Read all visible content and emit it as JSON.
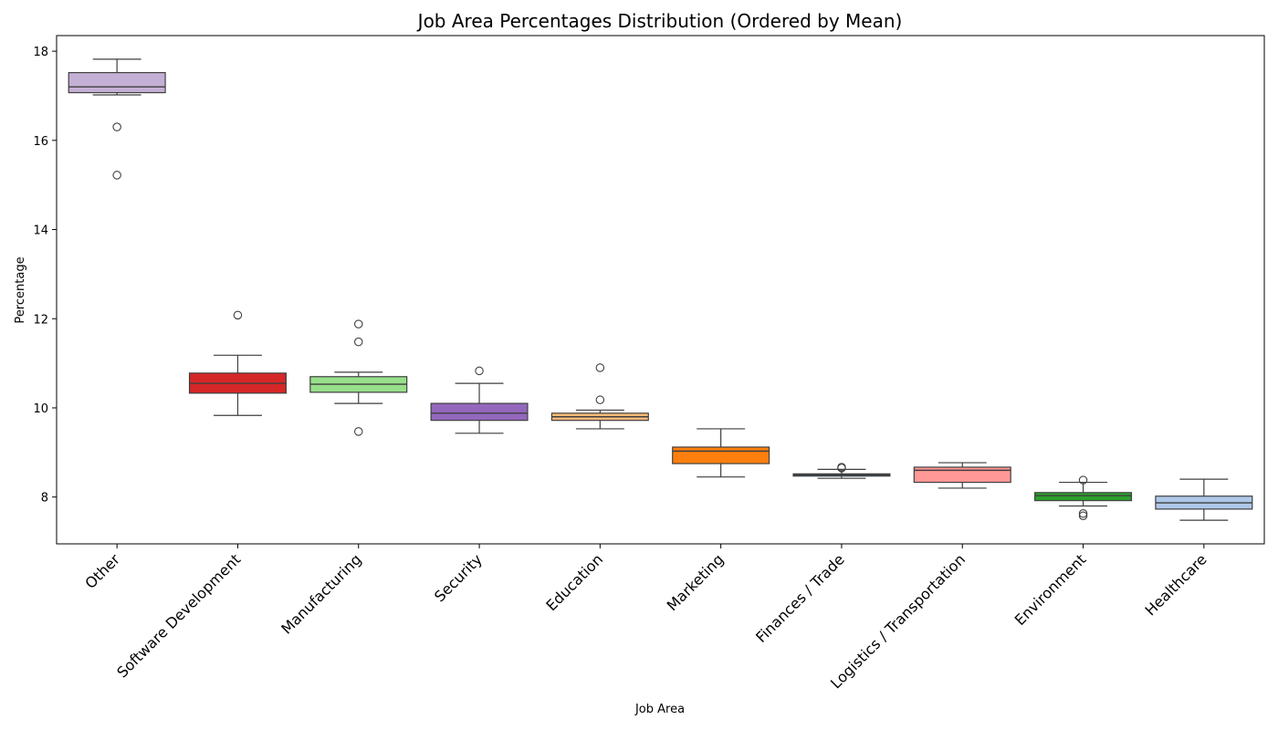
{
  "chart_data": {
    "type": "boxplot",
    "title": "Job Area Percentages Distribution (Ordered by Mean)",
    "xlabel": "Job Area",
    "ylabel": "Percentage",
    "ylim": [
      6.95,
      18.35
    ],
    "yticks": [
      8,
      10,
      12,
      14,
      16,
      18
    ],
    "grid": false,
    "legend": "none",
    "categories": [
      "Other",
      "Software Development",
      "Manufacturing",
      "Security",
      "Education",
      "Marketing",
      "Finances / Trade",
      "Logistics / Transportation",
      "Environment",
      "Healthcare"
    ],
    "boxes": [
      {
        "category": "Other",
        "color": "#c5b0d5",
        "whisker_low": 17.02,
        "q1": 17.07,
        "median": 17.2,
        "q3": 17.52,
        "whisker_high": 17.82,
        "outliers": [
          16.3,
          15.22
        ]
      },
      {
        "category": "Software Development",
        "color": "#d62728",
        "whisker_low": 9.83,
        "q1": 10.33,
        "median": 10.55,
        "q3": 10.78,
        "whisker_high": 11.18,
        "outliers": [
          12.08
        ]
      },
      {
        "category": "Manufacturing",
        "color": "#98df8a",
        "whisker_low": 10.1,
        "q1": 10.35,
        "median": 10.53,
        "q3": 10.7,
        "whisker_high": 10.8,
        "outliers": [
          11.88,
          11.48,
          9.47
        ]
      },
      {
        "category": "Security",
        "color": "#9467bd",
        "whisker_low": 9.43,
        "q1": 9.72,
        "median": 9.88,
        "q3": 10.1,
        "whisker_high": 10.55,
        "outliers": [
          10.83
        ]
      },
      {
        "category": "Education",
        "color": "#ffbb78",
        "whisker_low": 9.53,
        "q1": 9.72,
        "median": 9.8,
        "q3": 9.88,
        "whisker_high": 9.95,
        "outliers": [
          10.9,
          10.18
        ]
      },
      {
        "category": "Marketing",
        "color": "#ff7f0e",
        "whisker_low": 8.45,
        "q1": 8.75,
        "median": 9.03,
        "q3": 9.12,
        "whisker_high": 9.53,
        "outliers": []
      },
      {
        "category": "Finances / Trade",
        "color": "#1f77b4",
        "whisker_low": 8.42,
        "q1": 8.47,
        "median": 8.5,
        "q3": 8.52,
        "whisker_high": 8.62,
        "outliers": [
          8.67,
          8.65
        ]
      },
      {
        "category": "Logistics / Transportation",
        "color": "#ff9896",
        "whisker_low": 8.2,
        "q1": 8.33,
        "median": 8.6,
        "q3": 8.67,
        "whisker_high": 8.77,
        "outliers": []
      },
      {
        "category": "Environment",
        "color": "#2ca02c",
        "whisker_low": 7.8,
        "q1": 7.92,
        "median": 8.03,
        "q3": 8.1,
        "whisker_high": 8.33,
        "outliers": [
          8.38,
          7.63,
          7.58
        ]
      },
      {
        "category": "Healthcare",
        "color": "#aec7e8",
        "whisker_low": 7.48,
        "q1": 7.73,
        "median": 7.87,
        "q3": 8.02,
        "whisker_high": 8.4,
        "outliers": []
      }
    ]
  }
}
